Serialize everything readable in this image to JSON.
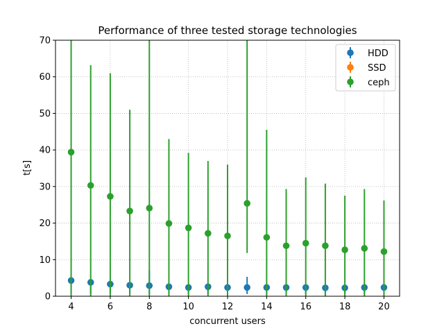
{
  "chart_data": {
    "type": "scatter",
    "title": "Performance of three tested storage technologies",
    "xlabel": "concurrent users",
    "ylabel": "t[s]",
    "xlim": [
      3.2,
      20.8
    ],
    "ylim": [
      0,
      70
    ],
    "xticks": [
      4,
      6,
      8,
      10,
      12,
      14,
      16,
      18,
      20
    ],
    "yticks": [
      0,
      10,
      20,
      30,
      40,
      50,
      60,
      70
    ],
    "grid": true,
    "legend_position": "top-right",
    "series": [
      {
        "name": "HDD",
        "color": "#1f77b4",
        "x": [
          4,
          5,
          6,
          7,
          8,
          9,
          10,
          11,
          12,
          13,
          14,
          15,
          16,
          17,
          18,
          19,
          20
        ],
        "y": [
          4.3,
          3.8,
          3.3,
          3.0,
          2.9,
          2.6,
          2.4,
          2.6,
          2.4,
          2.4,
          2.4,
          2.4,
          2.4,
          2.3,
          2.3,
          2.4,
          2.4
        ],
        "err_low": [
          0.6,
          0.6,
          0.6,
          0.6,
          0.6,
          0.6,
          0.6,
          0.6,
          0.6,
          0.6,
          0.6,
          0.6,
          0.6,
          0.4,
          0.6,
          0.6,
          0.6
        ],
        "err_high": [
          5.0,
          4.5,
          4.0,
          3.8,
          7.0,
          3.3,
          3.0,
          3.3,
          3.0,
          5.3,
          3.0,
          3.0,
          3.0,
          2.8,
          2.8,
          3.0,
          3.0
        ]
      },
      {
        "name": "SSD",
        "color": "#ff7f0e",
        "x": [],
        "y": [],
        "err_low": [],
        "err_high": []
      },
      {
        "name": "ceph",
        "color": "#2ca02c",
        "x": [
          4,
          5,
          6,
          7,
          8,
          9,
          10,
          11,
          12,
          13,
          14,
          15,
          16,
          17,
          18,
          19,
          20
        ],
        "y": [
          39.4,
          30.3,
          27.3,
          23.3,
          24.1,
          19.9,
          18.7,
          17.2,
          16.5,
          25.4,
          16.1,
          13.8,
          14.5,
          13.8,
          12.7,
          13.1,
          12.2
        ],
        "err_low": [
          0,
          0,
          0,
          0,
          0,
          0,
          0,
          0,
          0,
          11.8,
          0,
          0,
          0,
          0,
          0,
          0,
          0
        ],
        "err_high": [
          70,
          63.2,
          61,
          51,
          70,
          43,
          39.2,
          37,
          36,
          70,
          45.5,
          29.3,
          32.5,
          30.8,
          27.5,
          29.3,
          26.2
        ]
      }
    ]
  }
}
